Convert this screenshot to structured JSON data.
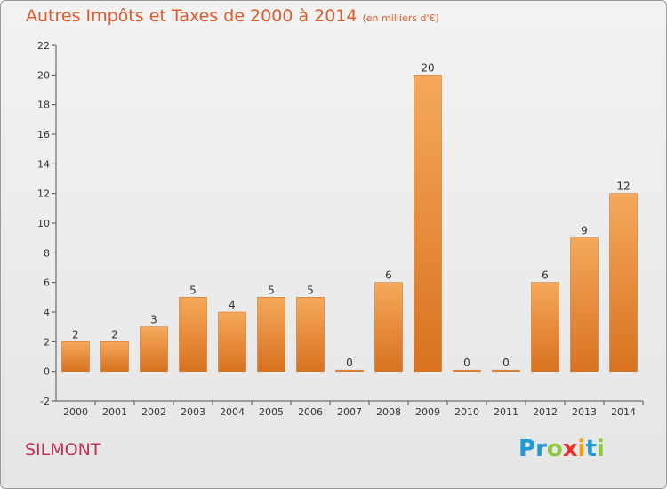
{
  "title": "Autres Impôts et Taxes de 2000 à 2014",
  "unit": "(en milliers d'€)",
  "commune": "SILMONT",
  "logo": {
    "letters": [
      "P",
      "r",
      "o",
      "x",
      "i",
      "t",
      "i"
    ],
    "colors": [
      "#1f9ad6",
      "#1f9ad6",
      "#8cc63f",
      "#e9302f",
      "#f39c12",
      "#1f9ad6",
      "#8cc63f"
    ]
  },
  "colors": {
    "bar_top": "#f6a85b",
    "bar_bottom": "#d8721f",
    "title": "#e05a2a",
    "commune": "#c0324f"
  },
  "chart_data": {
    "type": "bar",
    "categories": [
      "2000",
      "2001",
      "2002",
      "2003",
      "2004",
      "2005",
      "2006",
      "2007",
      "2008",
      "2009",
      "2010",
      "2011",
      "2012",
      "2013",
      "2014"
    ],
    "values": [
      2,
      2,
      3,
      5,
      4,
      5,
      5,
      0,
      6,
      20,
      0,
      0,
      6,
      9,
      12
    ],
    "title": "Autres Impôts et Taxes de 2000 à 2014",
    "ylim": [
      -2,
      22
    ],
    "yticks": [
      -2,
      0,
      2,
      4,
      6,
      8,
      10,
      12,
      14,
      16,
      18,
      20,
      22
    ],
    "grid": false,
    "data_labels": true
  }
}
